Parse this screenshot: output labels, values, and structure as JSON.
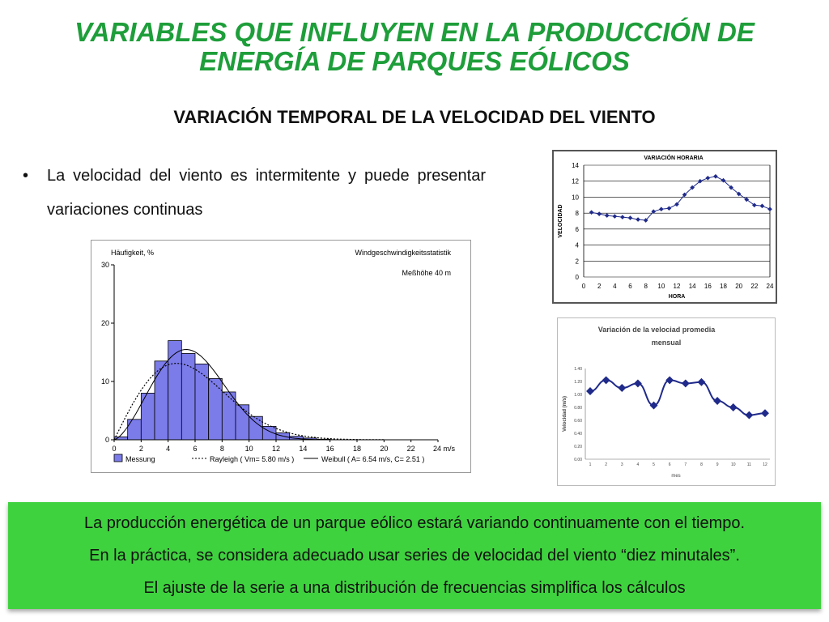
{
  "title_line1": "VARIABLES QUE INFLUYEN EN LA PRODUCCIÓN DE",
  "title_line2": "ENERGÍA DE PARQUES EÓLICOS",
  "subtitle": "VARIACIÓN TEMPORAL DE LA VELOCIDAD DEL VIENTO",
  "bullet": {
    "symbol": "•",
    "text": "La velocidad del viento es intermitente y puede presentar variaciones continuas"
  },
  "banner": {
    "line1": "La producción energética de un parque eólico estará variando continuamente con el tiempo.",
    "line2": "En la práctica, se considera adecuado usar series de velocidad del viento “diez minutales”.",
    "line3": "El ajuste de la serie a una distribución de frecuencias simplifica los cálculos"
  },
  "colors": {
    "title": "#1e9e3a",
    "banner": "#3fd23f",
    "histogram_bar": "#7b7bea",
    "series": "#1f2a8a"
  },
  "chart_data": [
    {
      "type": "bar",
      "title": "Windgeschwindigkeitsstatistik",
      "subtitle": "Meßhöhe 40 m",
      "ylabel": "Häufigkeit, %",
      "xlabel": "m/s",
      "xlim": [
        0,
        24
      ],
      "ylim": [
        0,
        30
      ],
      "xticks": [
        "0",
        "2",
        "4",
        "6",
        "8",
        "10",
        "12",
        "14",
        "16",
        "18",
        "20",
        "22",
        "24 m/s"
      ],
      "yticks": [
        "0",
        "10",
        "20",
        "30"
      ],
      "bin_width": 1,
      "bin_starts": [
        0,
        1,
        2,
        3,
        4,
        5,
        6,
        7,
        8,
        9,
        10,
        11,
        12,
        13,
        14,
        15
      ],
      "values": [
        0.5,
        3.5,
        8,
        13.5,
        17,
        14.8,
        13,
        10.5,
        8.2,
        6,
        4,
        2.3,
        1.2,
        0.6,
        0.3,
        0.1
      ],
      "legend": [
        "Messung",
        "Rayleigh ( Vm= 5.80 m/s )",
        "Weibull ( A= 6.54 m/s, C= 2.51 )"
      ],
      "rayleigh": {
        "vm": 5.8
      },
      "weibull": {
        "A": 6.54,
        "C": 2.51
      }
    },
    {
      "type": "line",
      "title": "VARIACIÓN HORARIA",
      "xlabel": "HORA",
      "ylabel": "VELOCIDAD",
      "xlim": [
        0,
        24
      ],
      "ylim": [
        0,
        14
      ],
      "xticks": [
        "0",
        "2",
        "4",
        "6",
        "8",
        "10",
        "12",
        "14",
        "16",
        "18",
        "20",
        "22",
        "24"
      ],
      "yticks": [
        "0",
        "2",
        "4",
        "6",
        "8",
        "10",
        "12",
        "14"
      ],
      "x": [
        1,
        2,
        3,
        4,
        5,
        6,
        7,
        8,
        9,
        10,
        11,
        12,
        13,
        14,
        15,
        16,
        17,
        18,
        19,
        20,
        21,
        22,
        23,
        24
      ],
      "values": [
        8.1,
        7.9,
        7.7,
        7.6,
        7.5,
        7.4,
        7.2,
        7.1,
        8.2,
        8.5,
        8.6,
        9.1,
        10.3,
        11.2,
        12.0,
        12.4,
        12.6,
        12.1,
        11.2,
        10.4,
        9.7,
        9.0,
        8.9,
        8.5
      ]
    },
    {
      "type": "line",
      "title_line1": "Variación de la velociad promedia",
      "title_line2": "mensual",
      "xlabel": "mes",
      "ylabel": "Velocidad (m/s)",
      "ylim": [
        0,
        1.4
      ],
      "yticks": [
        "0.00",
        "0.20",
        "0.40",
        "0.60",
        "0.80",
        "1.00",
        "1.20",
        "1.40"
      ],
      "categories": [
        "1",
        "2",
        "3",
        "4",
        "5",
        "6",
        "7",
        "8",
        "9",
        "10",
        "11",
        "12"
      ],
      "values": [
        1.05,
        1.22,
        1.1,
        1.17,
        0.83,
        1.22,
        1.17,
        1.19,
        0.9,
        0.8,
        0.68,
        0.71
      ]
    }
  ]
}
